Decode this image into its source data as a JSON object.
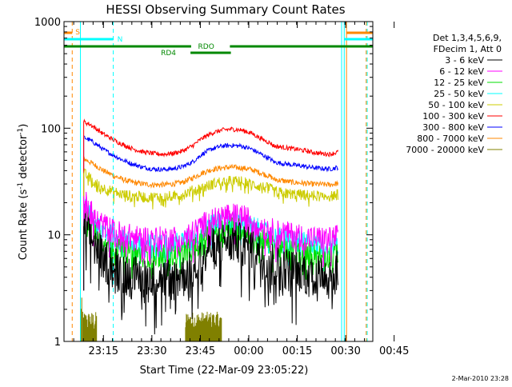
{
  "chart_data": {
    "type": "line",
    "title": "HESSI Observing Summary Count Rates",
    "xlabel": "Start Time (22-Mar-09 23:05:22)",
    "ylabel_main": "Count Rate (s",
    "ylabel_sup1": "-1",
    "ylabel_mid": " detector",
    "ylabel_sup2": "-1",
    "ylabel_end": ")",
    "yscale": "log",
    "ylim": [
      1,
      1000
    ],
    "xlim_minutes": [
      -12,
      82
    ],
    "x_ticks": [
      "23:15",
      "23:30",
      "23:45",
      "00:00",
      "00:15",
      "00:30",
      "00:45"
    ],
    "y_ticks": [
      "1",
      "10",
      "100",
      "1000"
    ],
    "legend_header": [
      "Det 1,3,4,5,6,9,",
      "FDecim 1, Att 0"
    ],
    "series": [
      {
        "name": "3 - 6 keV",
        "color": "#000000",
        "x": [
          -6,
          -4,
          -2,
          0,
          3,
          6,
          9,
          12,
          15,
          18,
          21,
          24,
          27,
          30,
          33,
          36,
          39,
          42,
          45,
          48,
          51,
          52,
          55,
          58,
          61,
          63,
          66,
          69,
          71.5
        ],
        "y": [
          12,
          9.5,
          8,
          6.5,
          5.5,
          4.8,
          4.4,
          4.2,
          4.1,
          4.1,
          4.2,
          4.4,
          5,
          6.5,
          8,
          9,
          9.2,
          9,
          8,
          7,
          6.3,
          5.5,
          5.3,
          5,
          4.8,
          4.7,
          4.6,
          4.6,
          5
        ]
      },
      {
        "name": "6 - 12 keV",
        "color": "#ff00ff",
        "x": [
          -6,
          -4,
          -2,
          0,
          3,
          6,
          9,
          12,
          15,
          18,
          21,
          24,
          27,
          30,
          33,
          36,
          39,
          42,
          45,
          48,
          51,
          52,
          55,
          58,
          61,
          63,
          66,
          69,
          71.5
        ],
        "y": [
          22,
          17,
          14,
          12.5,
          11.2,
          10.3,
          9.8,
          9.5,
          9.4,
          9.4,
          9.5,
          9.8,
          10.5,
          12.5,
          14,
          15.2,
          15.5,
          15.2,
          14,
          12.5,
          11.5,
          11,
          10.6,
          10.2,
          9.8,
          9.6,
          9.4,
          9.3,
          10
        ]
      },
      {
        "name": "12 - 25 keV",
        "color": "#00dd00",
        "x": [
          -6,
          -4,
          -2,
          0,
          3,
          6,
          9,
          12,
          15,
          18,
          21,
          24,
          27,
          30,
          33,
          36,
          39,
          42,
          45,
          48,
          51,
          52,
          55,
          58,
          61,
          63,
          66,
          69,
          71.5
        ],
        "y": [
          17,
          13,
          10.5,
          9,
          8,
          7.3,
          6.9,
          6.6,
          6.5,
          6.5,
          6.6,
          6.9,
          7.5,
          9,
          10.6,
          11.5,
          11.8,
          11.5,
          10.5,
          9.2,
          8.4,
          7.8,
          7.5,
          7.2,
          6.9,
          6.8,
          6.6,
          6.5,
          7
        ]
      },
      {
        "name": "25 - 50 keV",
        "color": "#00ffff",
        "x": [
          -6,
          -4,
          -2,
          0,
          3,
          6,
          9,
          12,
          15,
          18,
          21,
          24,
          27,
          30,
          33,
          36,
          39,
          42,
          45,
          48,
          51,
          52,
          55,
          58,
          61,
          63,
          66,
          69,
          71.5
        ],
        "y": [
          19,
          15,
          12.5,
          11,
          9.8,
          9,
          8.6,
          8.3,
          8.2,
          8.2,
          8.3,
          8.6,
          9.2,
          11,
          12.6,
          13.6,
          13.9,
          13.6,
          12.5,
          11,
          10.2,
          9.6,
          9.2,
          8.9,
          8.6,
          8.4,
          8.2,
          8.1,
          8.6
        ]
      },
      {
        "name": "50 - 100 keV",
        "color": "#cccc00",
        "x": [
          -6,
          -4,
          -2,
          0,
          3,
          6,
          9,
          12,
          15,
          18,
          21,
          24,
          27,
          30,
          33,
          36,
          39,
          42,
          45,
          48,
          51,
          52,
          55,
          58,
          61,
          63,
          66,
          69,
          71.5
        ],
        "y": [
          38,
          34,
          30,
          27.5,
          25.5,
          24,
          23.2,
          22.8,
          22.7,
          22.8,
          23.2,
          24,
          26,
          27.5,
          30,
          31.8,
          32.2,
          31.8,
          30,
          28.5,
          27,
          25.5,
          24.7,
          24.2,
          23.8,
          23.5,
          23.3,
          23.2,
          24
        ]
      },
      {
        "name": "100 - 300 keV",
        "color": "#ff0000",
        "x": [
          -6,
          -4,
          -2,
          0,
          3,
          6,
          9,
          12,
          15,
          18,
          21,
          24,
          27,
          30,
          33,
          36,
          39,
          42,
          45,
          48,
          51,
          52,
          55,
          58,
          61,
          63,
          66,
          69,
          71.5
        ],
        "y": [
          115,
          108,
          98,
          88,
          78,
          70,
          64,
          60,
          58,
          57,
          58,
          61,
          68,
          80,
          90,
          96,
          98,
          96,
          90,
          80,
          72,
          68,
          66,
          64,
          62,
          60,
          58,
          57,
          60
        ]
      },
      {
        "name": "300 - 800 keV",
        "color": "#0000ff",
        "x": [
          -6,
          -4,
          -2,
          0,
          3,
          6,
          9,
          12,
          15,
          18,
          21,
          24,
          27,
          30,
          33,
          36,
          39,
          42,
          45,
          48,
          51,
          52,
          55,
          58,
          61,
          63,
          66,
          69,
          71.5
        ],
        "y": [
          82,
          77,
          70,
          63,
          56,
          50,
          46,
          43,
          41.5,
          41,
          41.5,
          43.5,
          48,
          57,
          64,
          68,
          69,
          68,
          64,
          57,
          51,
          48,
          46.5,
          45,
          44,
          43,
          42,
          41.5,
          43
        ]
      },
      {
        "name": "800 - 7000 keV",
        "color": "#ff8800",
        "x": [
          -6,
          -4,
          -2,
          0,
          3,
          6,
          9,
          12,
          15,
          18,
          21,
          24,
          27,
          30,
          33,
          36,
          39,
          42,
          45,
          48,
          51,
          52,
          55,
          58,
          61,
          63,
          66,
          69,
          71.5
        ],
        "y": [
          52,
          48,
          44,
          40,
          36,
          33,
          31,
          30,
          29.5,
          29.5,
          30,
          31,
          34,
          38,
          41,
          42.5,
          43,
          42.5,
          41,
          38,
          35,
          33,
          32,
          31,
          30.5,
          30,
          29.8,
          29.5,
          30.5
        ]
      },
      {
        "name": "7000 - 20000 keV",
        "color": "#808000",
        "x": [],
        "y": []
      }
    ]
  },
  "annotations": {
    "flag_s": "S",
    "flag_n": "N",
    "flag_rdo": "RDO",
    "flag_rd4": "RD4"
  },
  "footer_date": "2-Mar-2010 23:28"
}
